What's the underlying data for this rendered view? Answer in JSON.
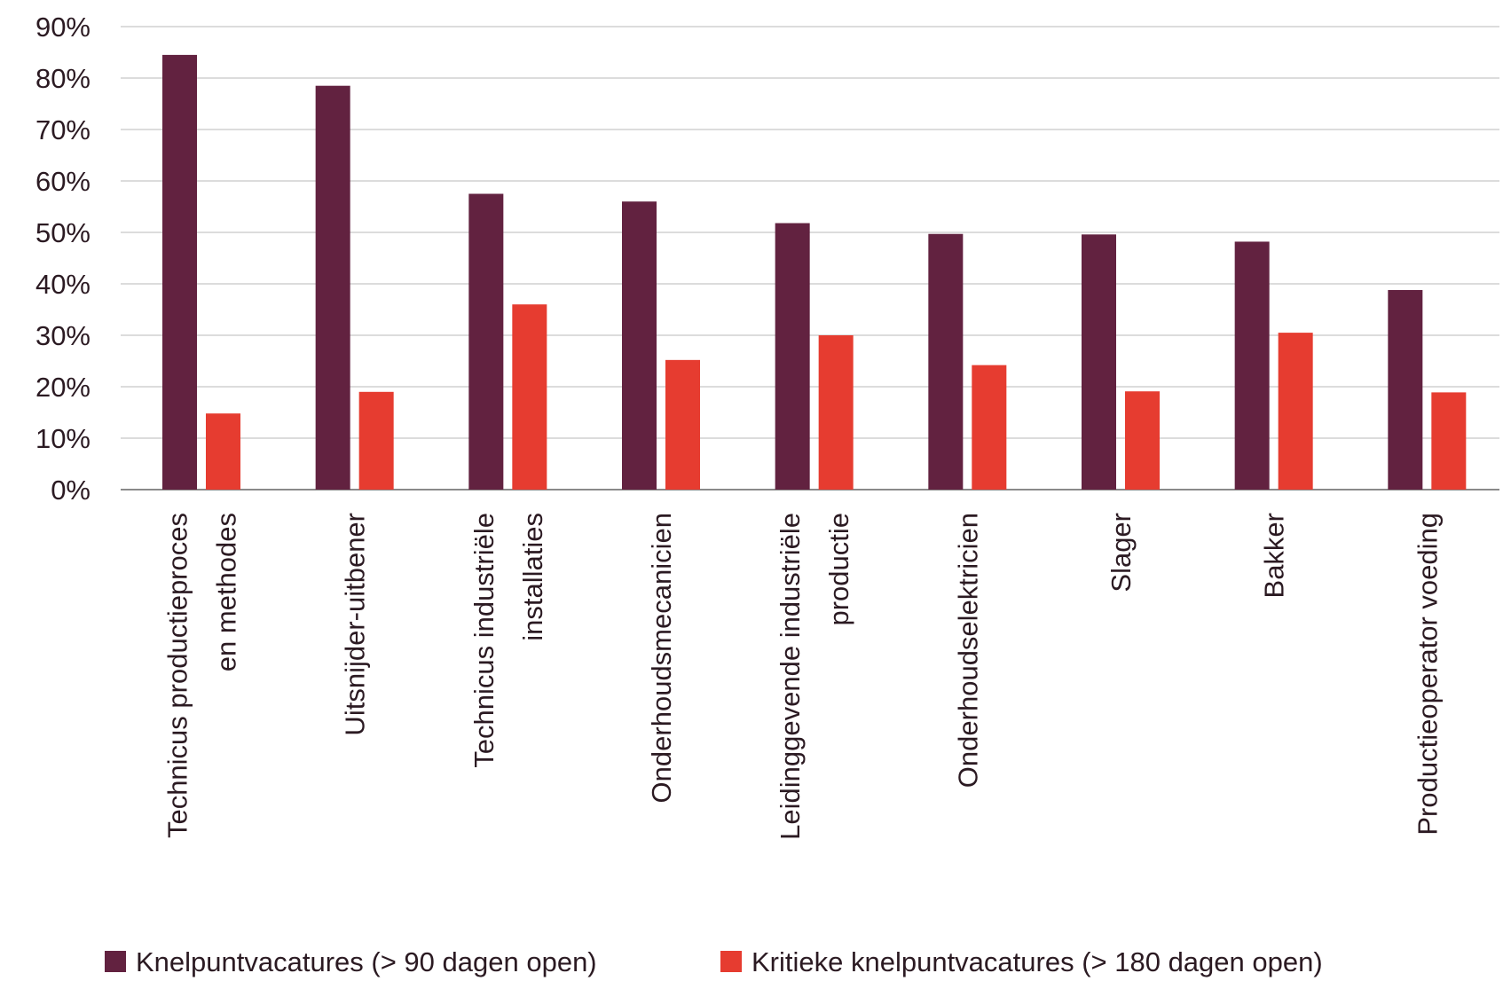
{
  "chart_data": {
    "type": "bar",
    "categories": [
      [
        "Technicus productieproces",
        "en methodes"
      ],
      [
        "Uitsnijder-uitbener"
      ],
      [
        "Technicus industriële",
        "installaties"
      ],
      [
        "Onderhoudsmecanicien"
      ],
      [
        "Leidinggevende industriële",
        "productie"
      ],
      [
        "Onderhoudselektricien"
      ],
      [
        "Slager"
      ],
      [
        "Bakker"
      ],
      [
        "Productieoperator voeding"
      ]
    ],
    "series": [
      {
        "name": "Knelpuntvacatures (> 90 dagen open)",
        "color": "#622240",
        "values": [
          84.5,
          78.5,
          57.5,
          56,
          51.8,
          49.7,
          49.6,
          48.2,
          38.8
        ]
      },
      {
        "name": "Kritieke knelpuntvacatures (> 180 dagen open)",
        "color": "#e63c30",
        "values": [
          14.8,
          19,
          36,
          25.2,
          30,
          24.2,
          19.1,
          30.5,
          18.9
        ]
      }
    ],
    "ylim": [
      0,
      90
    ],
    "yticks": [
      0,
      10,
      20,
      30,
      40,
      50,
      60,
      70,
      80,
      90
    ],
    "ytick_suffix": "%",
    "grid": true,
    "legend_position": "bottom"
  }
}
